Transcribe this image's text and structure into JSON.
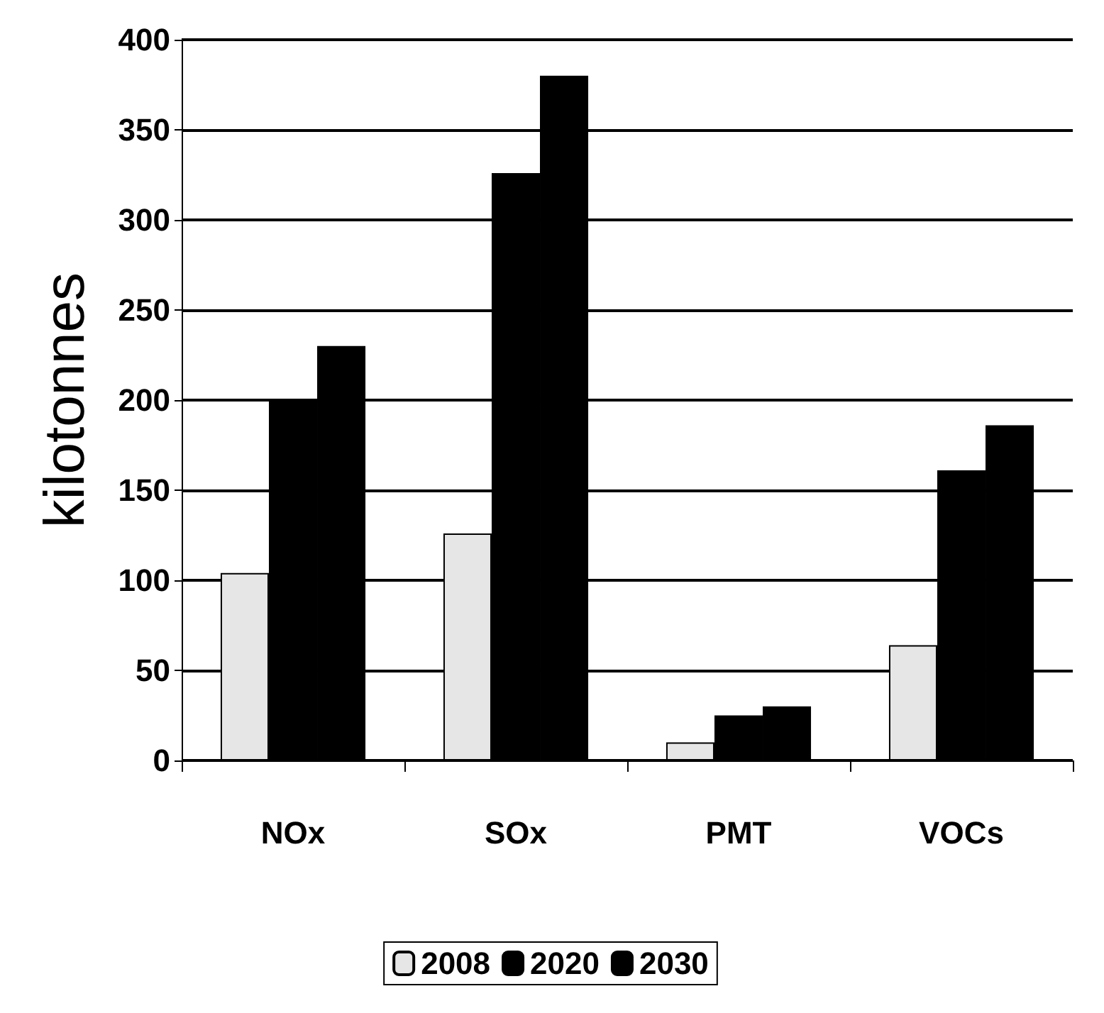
{
  "chart_data": {
    "type": "bar",
    "ylabel": "kilotonnes",
    "categories": [
      "NOx",
      "SOx",
      "PMT",
      "VOCs"
    ],
    "series": [
      {
        "name": "2008",
        "color": "#e6e6e6",
        "values": [
          104,
          126,
          10,
          64
        ]
      },
      {
        "name": "2020",
        "color": "#000000",
        "values": [
          200,
          326,
          25,
          161
        ]
      },
      {
        "name": "2030",
        "color": "#000000",
        "values": [
          230,
          380,
          30,
          186
        ]
      }
    ],
    "ylim": [
      0,
      400
    ],
    "yticks": [
      0,
      50,
      100,
      150,
      200,
      250,
      300,
      350,
      400
    ],
    "grid": "y",
    "legend": "bottom"
  }
}
